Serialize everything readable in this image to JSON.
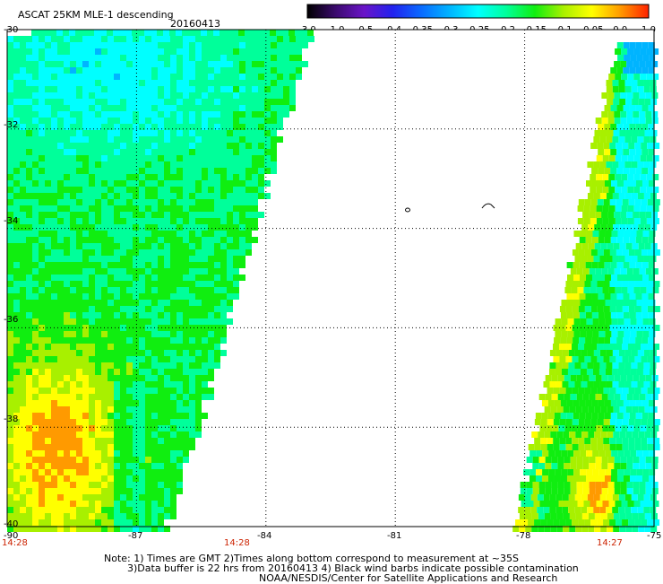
{
  "header": {
    "product": "ASCAT 25KM MLE-1 descending",
    "date": "20160413"
  },
  "colorbar": {
    "labels": [
      "-3.0",
      "-1.0",
      "-0.5",
      "-0.4",
      "-0.35",
      "-0.3",
      "-0.25",
      "-0.2",
      "-0.15",
      "-0.1",
      "-0.05",
      "0.0",
      "1.0"
    ],
    "colors": [
      "#000000",
      "#3b0a6e",
      "#6a14c8",
      "#2222ee",
      "#0a6aff",
      "#00b4ff",
      "#00ffff",
      "#00ff9a",
      "#10ee10",
      "#a8f000",
      "#ffff00",
      "#ff9a00",
      "#ff2200"
    ]
  },
  "axes": {
    "x_ticks": [
      "-90",
      "-87",
      "-84",
      "-81",
      "-78",
      "-75"
    ],
    "y_ticks": [
      "-30",
      "-32",
      "-34",
      "-36",
      "-38",
      "-40"
    ]
  },
  "swath_times": {
    "left": "14:28",
    "middle": "14:28",
    "right": "14:27"
  },
  "notes": {
    "line1": "Note: 1) Times are GMT 2)Times along bottom correspond to measurement at ~35S",
    "line2": "3)Data buffer is 22 hrs from 20160413 4) Black wind barbs indicate possible contamination",
    "line3": "NOAA/NESDIS/Center for Satellite Applications and Research"
  }
}
